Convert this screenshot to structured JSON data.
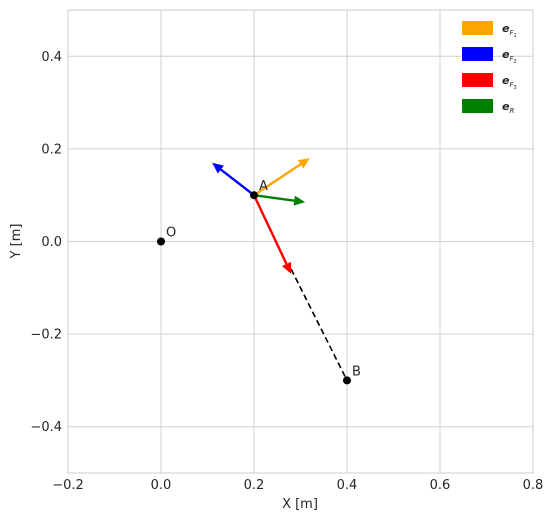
{
  "chart_data": {
    "type": "vector-plot",
    "xlabel": "X [m]",
    "ylabel": "Y [m]",
    "xlim": [
      -0.2,
      0.8
    ],
    "ylim": [
      -0.5,
      0.5
    ],
    "x_ticks": [
      -0.2,
      0.0,
      0.2,
      0.4,
      0.6,
      0.8
    ],
    "x_tick_labels": [
      "−0.2",
      "0.0",
      "0.2",
      "0.4",
      "0.6",
      "0.8"
    ],
    "y_ticks": [
      -0.4,
      -0.2,
      0.0,
      0.2,
      0.4
    ],
    "y_tick_labels": [
      "−0.4",
      "−0.2",
      "0.0",
      "0.2",
      "0.4"
    ],
    "grid": true,
    "legend_position": "top-right",
    "points": [
      {
        "label": "O",
        "x": 0.0,
        "y": 0.0
      },
      {
        "label": "A",
        "x": 0.2,
        "y": 0.1
      },
      {
        "label": "B",
        "x": 0.4,
        "y": -0.3
      }
    ],
    "dashed_segment": {
      "from": [
        0.28,
        -0.06
      ],
      "to": [
        0.4,
        -0.3
      ]
    },
    "vectors": [
      {
        "name": "e_F1",
        "color": "#ffa500",
        "from": [
          0.2,
          0.1
        ],
        "to": [
          0.32,
          0.18
        ]
      },
      {
        "name": "e_F2",
        "color": "#0000ff",
        "from": [
          0.2,
          0.1
        ],
        "to": [
          0.11,
          0.17
        ]
      },
      {
        "name": "e_F3",
        "color": "#ff0000",
        "from": [
          0.2,
          0.1
        ],
        "to": [
          0.28,
          -0.07
        ]
      },
      {
        "name": "e_R",
        "color": "#008000",
        "from": [
          0.2,
          0.1
        ],
        "to": [
          0.31,
          0.085
        ]
      }
    ],
    "legend": [
      {
        "name": "e_F1",
        "label": "e",
        "sub": "F",
        "subsub": "1",
        "color": "#ffa500"
      },
      {
        "name": "e_F2",
        "label": "e",
        "sub": "F",
        "subsub": "2",
        "color": "#0000ff"
      },
      {
        "name": "e_F3",
        "label": "e",
        "sub": "F",
        "subsub": "3",
        "color": "#ff0000"
      },
      {
        "name": "e_R",
        "label": "e",
        "sub": "R",
        "subsub": "",
        "color": "#008000"
      }
    ]
  }
}
